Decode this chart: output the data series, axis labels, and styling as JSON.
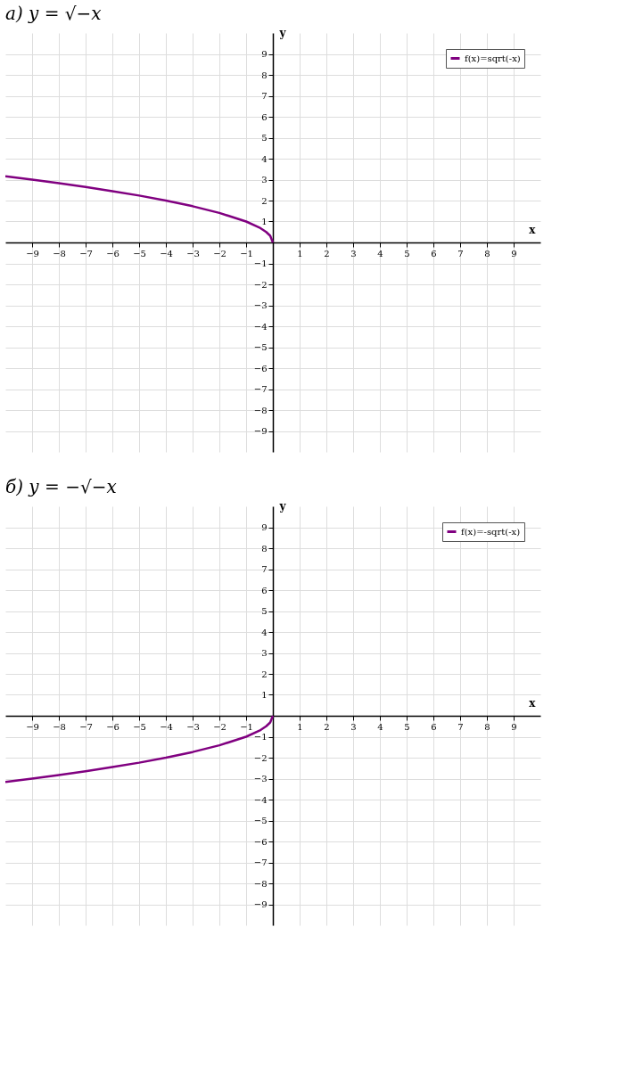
{
  "chart_data": [
    {
      "type": "line",
      "title": "а) y = √−x",
      "xlabel": "x",
      "ylabel": "y",
      "x": [
        -10,
        -9,
        -8,
        -7,
        -6,
        -5,
        -4,
        -3,
        -2,
        -1,
        -0.5,
        -0.25,
        -0.1,
        0
      ],
      "series": [
        {
          "name": "f(x)=sqrt(-x)",
          "color": "#800080",
          "values": [
            3.16,
            3,
            2.83,
            2.65,
            2.45,
            2.24,
            2,
            1.73,
            1.41,
            1,
            0.71,
            0.5,
            0.32,
            0
          ]
        }
      ],
      "xlim": [
        -10,
        10
      ],
      "ylim": [
        -10,
        10
      ],
      "xticks": [
        -9,
        -8,
        -7,
        -6,
        -5,
        -4,
        -3,
        -2,
        -1,
        1,
        2,
        3,
        4,
        5,
        6,
        7,
        8,
        9
      ],
      "yticks": [
        -9,
        -8,
        -7,
        -6,
        -5,
        -4,
        -3,
        -2,
        -1,
        1,
        2,
        3,
        4,
        5,
        6,
        7,
        8,
        9
      ],
      "grid": true,
      "legend": "top right"
    },
    {
      "type": "line",
      "title": "б) y = −√−x",
      "xlabel": "x",
      "ylabel": "y",
      "x": [
        -10,
        -9,
        -8,
        -7,
        -6,
        -5,
        -4,
        -3,
        -2,
        -1,
        -0.5,
        -0.25,
        -0.1,
        0
      ],
      "series": [
        {
          "name": "f(x)=-sqrt(-x)",
          "color": "#800080",
          "values": [
            -3.16,
            -3,
            -2.83,
            -2.65,
            -2.45,
            -2.24,
            -2,
            -1.73,
            -1.41,
            -1,
            -0.71,
            -0.5,
            -0.32,
            0
          ]
        }
      ],
      "xlim": [
        -10,
        10
      ],
      "ylim": [
        -10,
        10
      ],
      "xticks": [
        -9,
        -8,
        -7,
        -6,
        -5,
        -4,
        -3,
        -2,
        -1,
        1,
        2,
        3,
        4,
        5,
        6,
        7,
        8,
        9
      ],
      "yticks": [
        -9,
        -8,
        -7,
        -6,
        -5,
        -4,
        -3,
        -2,
        -1,
        1,
        2,
        3,
        4,
        5,
        6,
        7,
        8,
        9
      ],
      "grid": true,
      "legend": "top right"
    }
  ]
}
